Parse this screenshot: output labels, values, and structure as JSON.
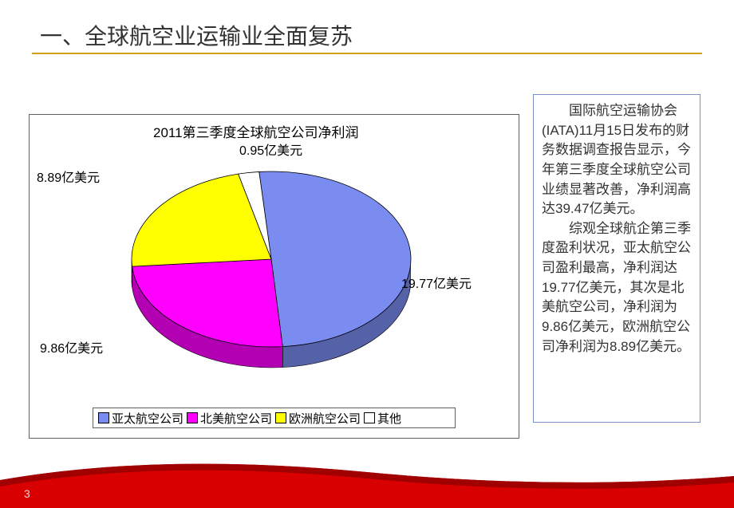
{
  "title": "一、全球航空业运输业全面复苏",
  "page_number": "3",
  "chart": {
    "type": "pie",
    "title": "2011第三季度全球航空公司净利润",
    "slices": [
      {
        "label": "亚太航空公司",
        "value": 19.77,
        "color": "#7a8cf0",
        "callout": "19.77亿美元"
      },
      {
        "label": "北美航空公司",
        "value": 9.86,
        "color": "#ff00ff",
        "callout": "9.86亿美元"
      },
      {
        "label": "欧洲航空公司",
        "value": 8.89,
        "color": "#ffff00",
        "callout": "8.89亿美元"
      },
      {
        "label": "其他",
        "value": 0.95,
        "color": "#ffffff",
        "callout": "0.95亿美元"
      }
    ],
    "edge_color": "#000000",
    "side_darken": 0.7,
    "background": "#ffffff",
    "border_color": "#606060",
    "legend_border": "#606060",
    "label_fontsize": 16,
    "title_fontsize": 17
  },
  "text_panel": {
    "border_color": "#7a93c4",
    "fontsize": 17,
    "paragraphs": [
      "国际航空运输协会(IATA)11月15日发布的财务数据调查报告显示，今年第三季度全球航空公司业绩显著改善，净利润高达39.47亿美元。",
      "综观全球航企第三季度盈利状况，亚太航空公司盈利最高，净利润达19.77亿美元，其次是北美航空公司，净利润为9.86亿美元，欧洲航空公司净利润为8.89亿美元。"
    ]
  },
  "decor": {
    "curve_color": "#d80000",
    "underline_color": "#d4a017",
    "pagenum_color": "#e8d0d0"
  }
}
